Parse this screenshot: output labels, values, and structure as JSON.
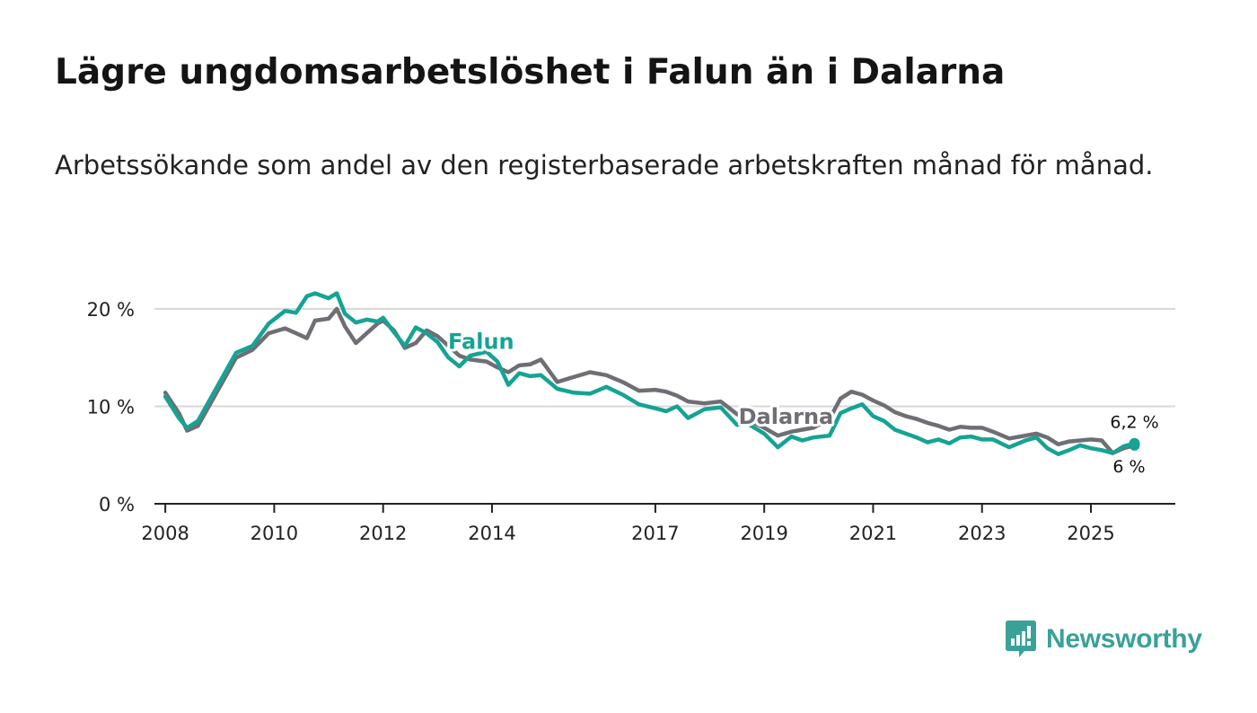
{
  "title": "Lägre ungdomsarbetslöshet i Falun än i Dalarna",
  "subtitle": "Arbetssökande som andel av den registerbaserade arbetskraften månad för månad.",
  "brand": "Newsworthy",
  "colors": {
    "falun": "#16a394",
    "dalarna": "#6e6e74",
    "grid": "#d9d9d9",
    "axis": "#222222"
  },
  "chart_data": {
    "type": "line",
    "title": "Lägre ungdomsarbetslöshet i Falun än i Dalarna",
    "xlabel": "",
    "ylabel": "",
    "xlim": [
      2007.8,
      2026.55
    ],
    "ylim": [
      0,
      20
    ],
    "x_ticks": [
      2008,
      2010,
      2012,
      2014,
      2017,
      2019,
      2021,
      2023,
      2025
    ],
    "x_tick_labels": [
      "2008",
      "2010",
      "2012",
      "2014",
      "2017",
      "2019",
      "2021",
      "2023",
      "2025"
    ],
    "y_ticks": [
      0,
      10,
      20
    ],
    "y_tick_labels": [
      "0 %",
      "10 %",
      "20 %"
    ],
    "grid": true,
    "series": [
      {
        "name": "Falun",
        "color": "#16a394",
        "end_label": "6,2 %",
        "x": [
          2008.0,
          2008.25,
          2008.4,
          2008.6,
          2009.0,
          2009.3,
          2009.6,
          2009.9,
          2010.2,
          2010.4,
          2010.6,
          2010.75,
          2011.0,
          2011.15,
          2011.3,
          2011.5,
          2011.7,
          2011.9,
          2012.0,
          2012.2,
          2012.4,
          2012.6,
          2012.8,
          2013.0,
          2013.2,
          2013.4,
          2013.6,
          2013.9,
          2014.1,
          2014.3,
          2014.5,
          2014.7,
          2014.9,
          2015.2,
          2015.5,
          2015.8,
          2016.1,
          2016.4,
          2016.7,
          2017.0,
          2017.2,
          2017.4,
          2017.6,
          2017.9,
          2018.2,
          2018.5,
          2018.7,
          2019.0,
          2019.25,
          2019.5,
          2019.7,
          2019.9,
          2020.2,
          2020.4,
          2020.6,
          2020.8,
          2021.0,
          2021.2,
          2021.4,
          2021.6,
          2021.8,
          2022.0,
          2022.2,
          2022.4,
          2022.6,
          2022.8,
          2023.0,
          2023.2,
          2023.5,
          2023.8,
          2024.0,
          2024.2,
          2024.4,
          2024.6,
          2024.8,
          2025.0,
          2025.2,
          2025.4,
          2025.6,
          2025.8
        ],
        "values": [
          11,
          8.8,
          7.8,
          8.5,
          12.5,
          15.5,
          16.2,
          18.5,
          19.8,
          19.6,
          21.3,
          21.6,
          21.1,
          21.6,
          19.5,
          18.6,
          18.9,
          18.7,
          19.1,
          17.6,
          16.2,
          18.1,
          17.5,
          16.6,
          15.0,
          14.1,
          15.2,
          15.6,
          14.6,
          12.2,
          13.4,
          13.1,
          13.2,
          11.8,
          11.4,
          11.3,
          12.0,
          11.2,
          10.2,
          9.8,
          9.5,
          10.0,
          8.8,
          9.7,
          9.9,
          8.1,
          8.2,
          7.2,
          5.8,
          6.9,
          6.5,
          6.8,
          7.0,
          9.3,
          9.8,
          10.2,
          9.0,
          8.5,
          7.6,
          7.2,
          6.8,
          6.3,
          6.6,
          6.2,
          6.8,
          6.9,
          6.6,
          6.6,
          5.8,
          6.5,
          6.8,
          5.7,
          5.1,
          5.5,
          6.0,
          5.7,
          5.5,
          5.2,
          5.9,
          6.2
        ]
      },
      {
        "name": "Dalarna",
        "color": "#6e6e74",
        "end_label": "6 %",
        "x": [
          2008.0,
          2008.25,
          2008.4,
          2008.6,
          2009.0,
          2009.3,
          2009.6,
          2009.9,
          2010.2,
          2010.4,
          2010.6,
          2010.75,
          2011.0,
          2011.15,
          2011.3,
          2011.5,
          2011.7,
          2011.9,
          2012.0,
          2012.2,
          2012.4,
          2012.6,
          2012.8,
          2013.0,
          2013.2,
          2013.4,
          2013.6,
          2013.9,
          2014.1,
          2014.3,
          2014.5,
          2014.7,
          2014.9,
          2015.2,
          2015.5,
          2015.8,
          2016.1,
          2016.4,
          2016.7,
          2017.0,
          2017.2,
          2017.4,
          2017.6,
          2017.9,
          2018.2,
          2018.5,
          2018.7,
          2019.0,
          2019.25,
          2019.5,
          2019.7,
          2019.9,
          2020.2,
          2020.4,
          2020.6,
          2020.8,
          2021.0,
          2021.2,
          2021.4,
          2021.6,
          2021.8,
          2022.0,
          2022.2,
          2022.4,
          2022.6,
          2022.8,
          2023.0,
          2023.2,
          2023.5,
          2023.8,
          2024.0,
          2024.2,
          2024.4,
          2024.6,
          2024.8,
          2025.0,
          2025.2,
          2025.4,
          2025.6,
          2025.8
        ],
        "values": [
          11.4,
          9.3,
          7.5,
          8.0,
          12.0,
          15.0,
          15.8,
          17.5,
          18.0,
          17.5,
          17.0,
          18.8,
          19.0,
          20.0,
          18.2,
          16.5,
          17.5,
          18.5,
          18.8,
          17.8,
          16.0,
          16.5,
          17.8,
          17.2,
          16.2,
          15.2,
          14.8,
          14.6,
          14.0,
          13.5,
          14.2,
          14.3,
          14.8,
          12.5,
          13.0,
          13.5,
          13.2,
          12.5,
          11.6,
          11.7,
          11.5,
          11.1,
          10.5,
          10.3,
          10.5,
          9.2,
          8.6,
          7.8,
          7.0,
          7.4,
          7.6,
          7.8,
          8.7,
          10.8,
          11.5,
          11.2,
          10.6,
          10.1,
          9.4,
          9.0,
          8.7,
          8.3,
          8.0,
          7.6,
          7.9,
          7.8,
          7.8,
          7.4,
          6.7,
          7.0,
          7.2,
          6.8,
          6.1,
          6.4,
          6.5,
          6.6,
          6.5,
          5.2,
          5.7,
          6.0
        ]
      }
    ],
    "line_labels": [
      {
        "text": "Falun",
        "series": "Falun",
        "x": 2013.8,
        "y": 15.9
      },
      {
        "text": "Dalarna",
        "series": "Dalarna",
        "x": 2019.4,
        "y": 8.2
      }
    ]
  }
}
